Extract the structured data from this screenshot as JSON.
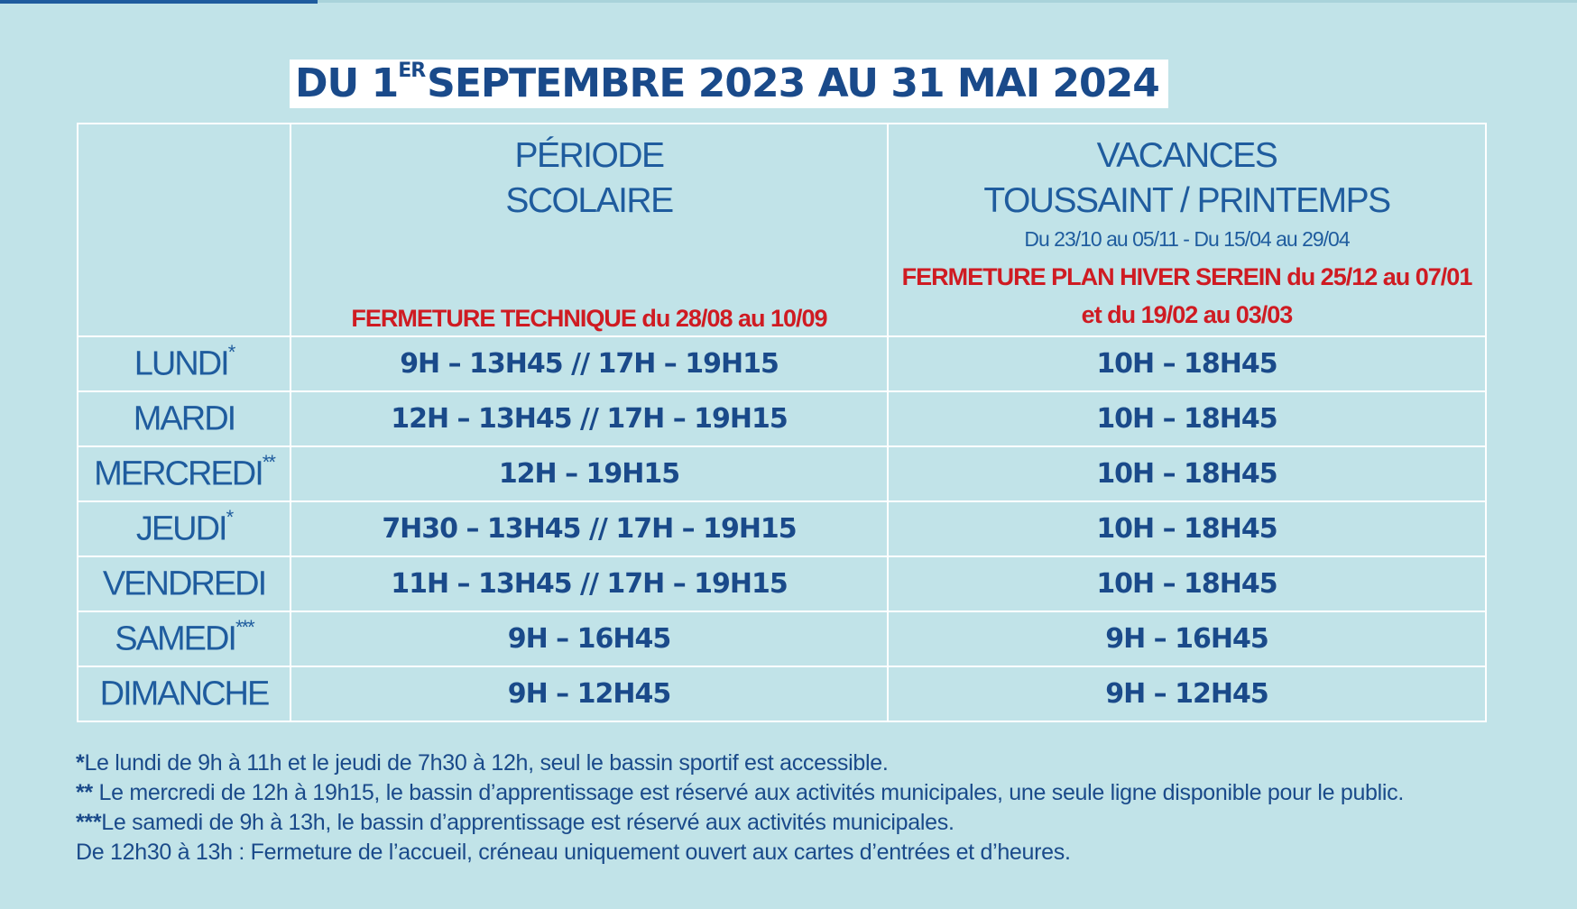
{
  "title": {
    "pre": "DU 1",
    "sup": "ER",
    "post": "SEPTEMBRE 2023 AU 31 MAI 2024"
  },
  "columns": {
    "school": {
      "title_line1": "PÉRIODE",
      "title_line2": "SCOLAIRE",
      "closure": "FERMETURE TECHNIQUE du 28/08 au 10/09"
    },
    "holidays": {
      "title_line1": "VACANCES",
      "title_line2": "TOUSSAINT / PRINTEMPS",
      "dates": "Du 23/10 au 05/11  - Du 15/04 au 29/04",
      "closure_line1": "FERMETURE PLAN HIVER SEREIN du 25/12 au 07/01",
      "closure_line2": "et du 19/02 au 03/03"
    }
  },
  "rows": [
    {
      "day": "LUNDI",
      "mark": "*",
      "school": "9H – 13H45 // 17H – 19H15",
      "holidays": "10H – 18H45"
    },
    {
      "day": "MARDI",
      "mark": "",
      "school": "12H – 13H45 // 17H – 19H15",
      "holidays": "10H – 18H45"
    },
    {
      "day": "MERCREDI",
      "mark": "**",
      "school": "12H – 19H15",
      "holidays": "10H – 18H45"
    },
    {
      "day": "JEUDI",
      "mark": "*",
      "school": "7H30 – 13H45 // 17H – 19H15",
      "holidays": "10H – 18H45"
    },
    {
      "day": "VENDREDI",
      "mark": "",
      "school": "11H – 13H45 // 17H – 19H15",
      "holidays": "10H – 18H45"
    },
    {
      "day": "SAMEDI",
      "mark": "***",
      "school": "9H – 16H45",
      "holidays": "9H – 16H45"
    },
    {
      "day": "DIMANCHE",
      "mark": "",
      "school": "9H – 12H45",
      "holidays": "9H – 12H45"
    }
  ],
  "notes": [
    {
      "mark": "*",
      "text": "Le lundi de 9h à 11h et le jeudi de 7h30 à 12h, seul le bassin sportif est accessible."
    },
    {
      "mark": "**",
      "text": " Le mercredi de 12h à 19h15, le bassin d’apprentissage est réservé aux activités municipales, une seule ligne disponible pour le public."
    },
    {
      "mark": "***",
      "text": "Le samedi de 9h à 13h, le bassin d’apprentissage est réservé aux activités municipales."
    },
    {
      "mark": "",
      "text": "De 12h30 à 13h : Fermeture de l’accueil, créneau uniquement ouvert aux cartes d’entrées et d’heures."
    }
  ],
  "colors": {
    "background": "#c1e3e8",
    "primary_blue": "#1a4a8a",
    "closure_red": "#cf1b22",
    "grid_lines": "#ffffff"
  }
}
